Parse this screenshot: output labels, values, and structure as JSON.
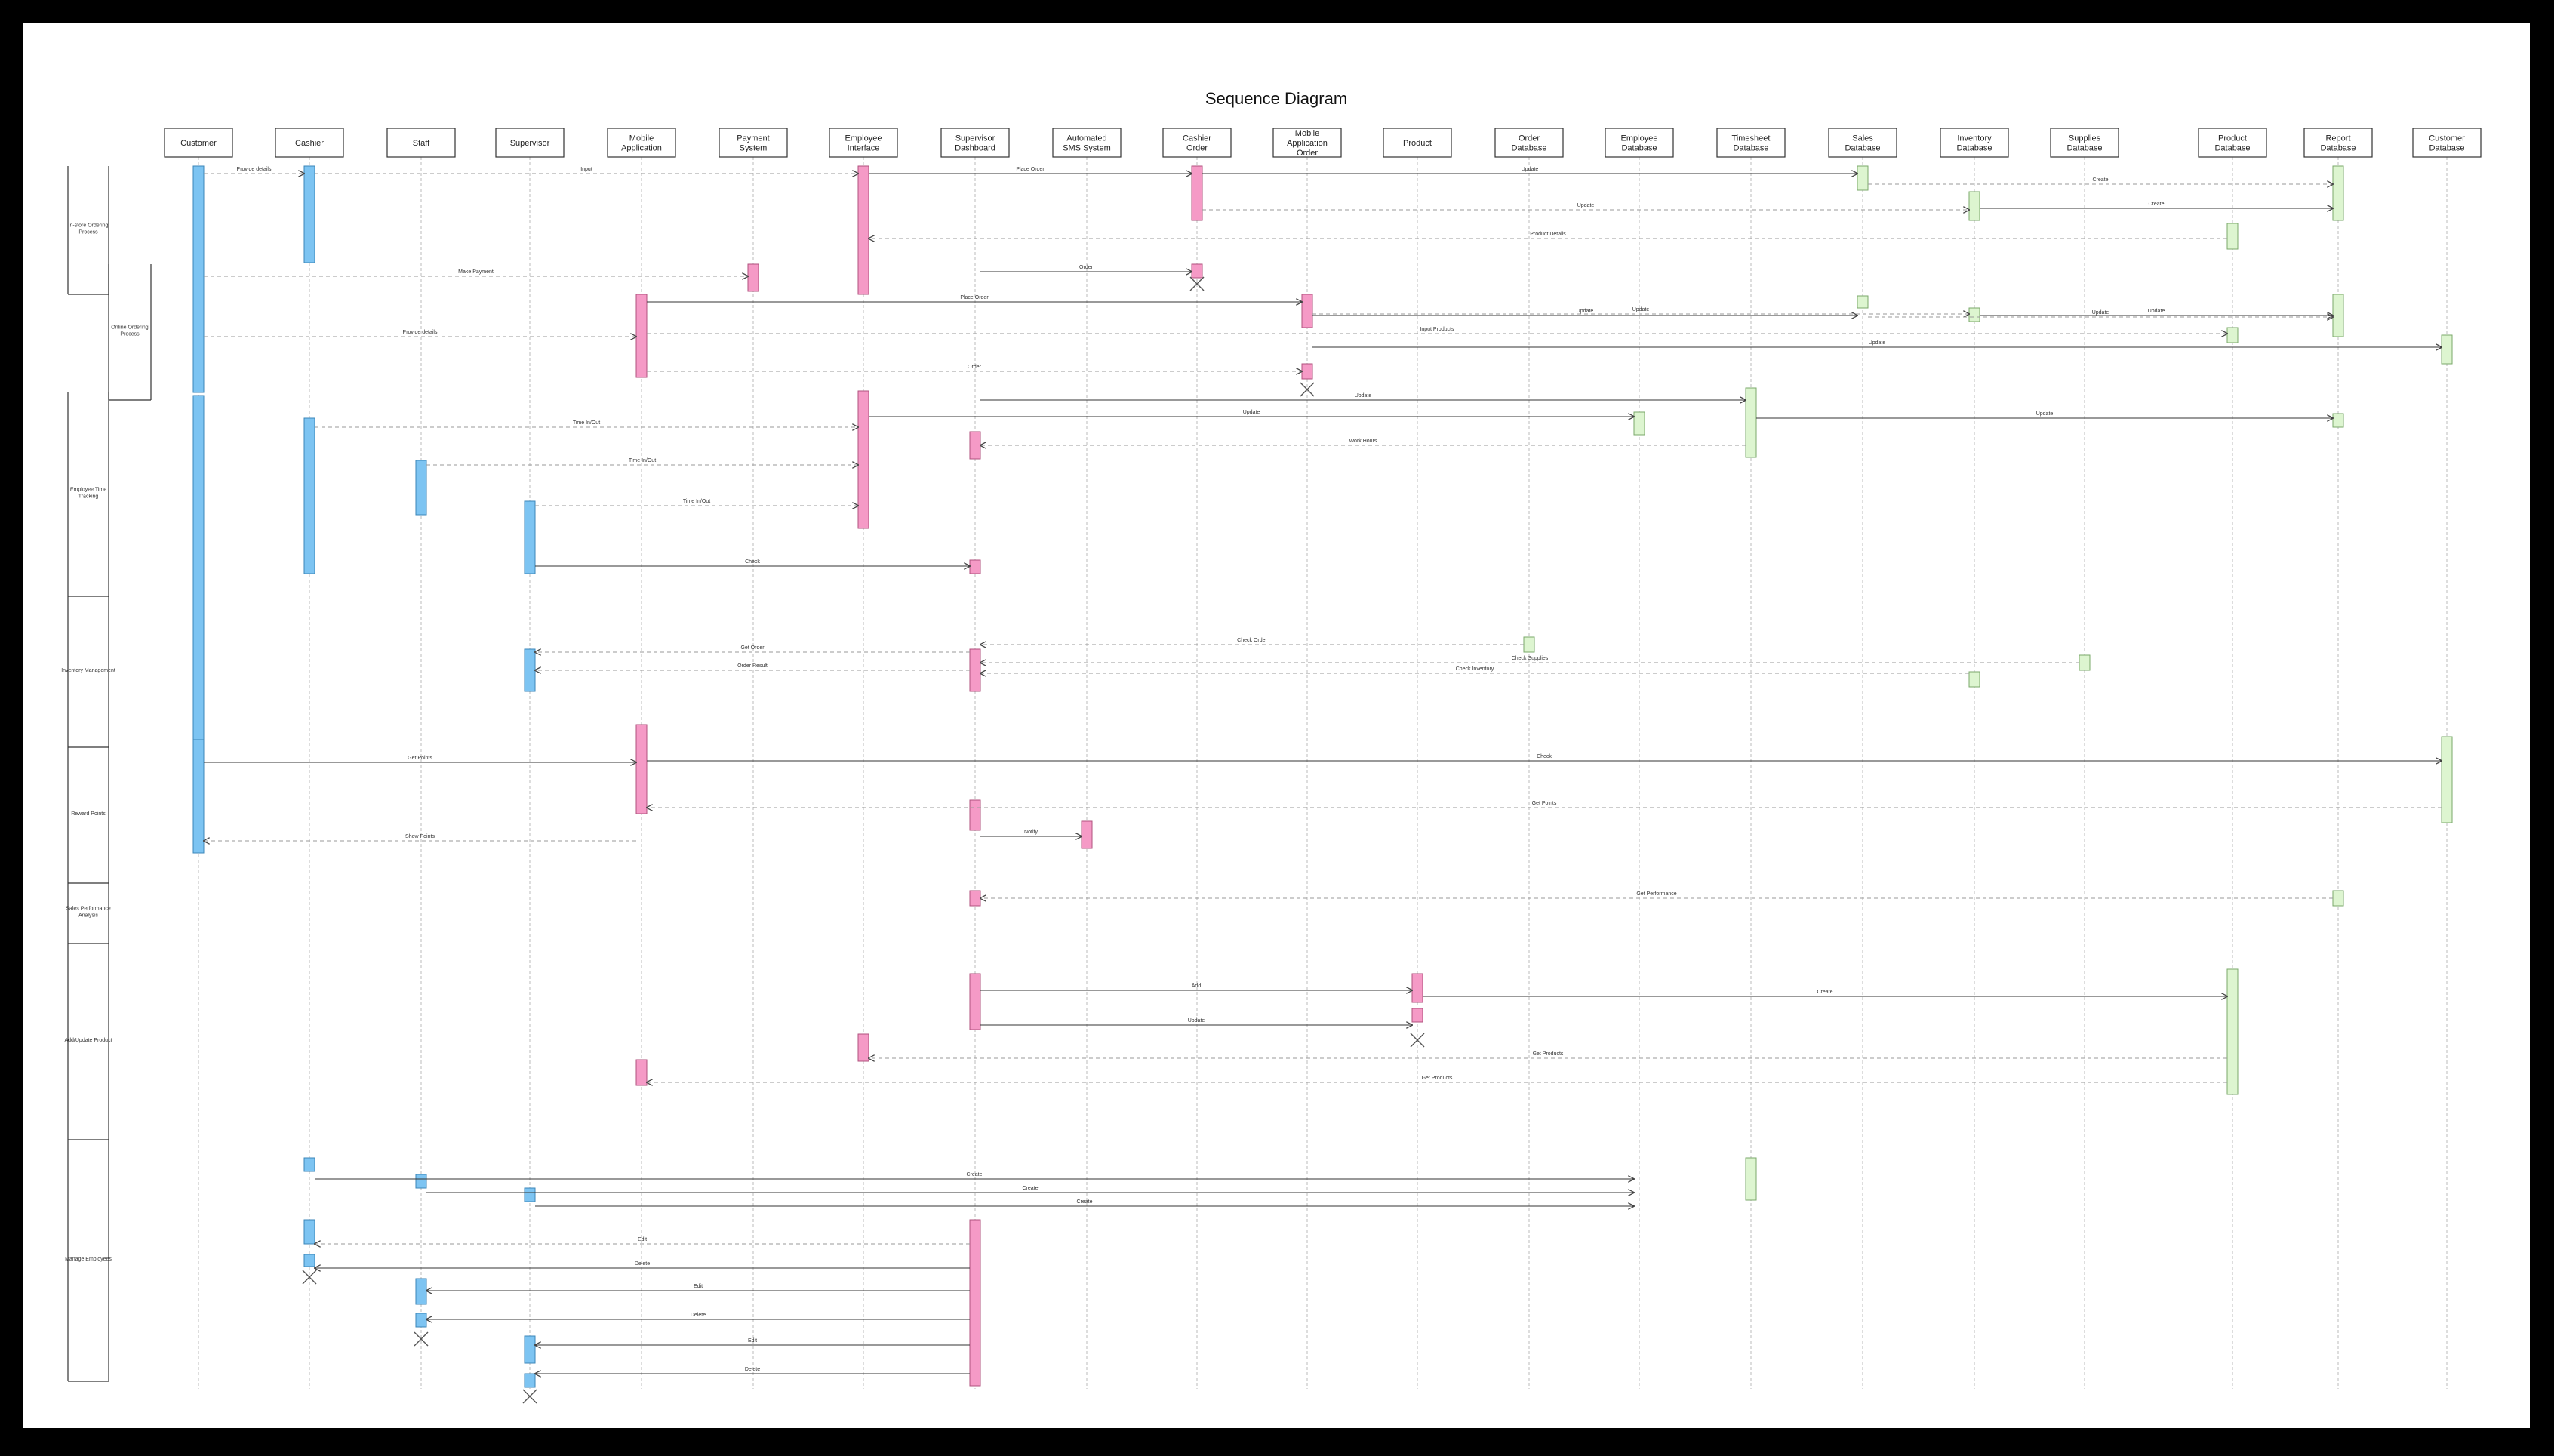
{
  "title": "Sequence Diagram",
  "colors": {
    "actor_bar": "#7dc4f2",
    "system_bar": "#f59ac6",
    "database_bar": "#ddf5d0",
    "database_border": "#7aa86a",
    "message": "#555555"
  },
  "participants": [
    {
      "id": "customer",
      "label": "Customer",
      "kind": "actor"
    },
    {
      "id": "cashier",
      "label": "Cashier",
      "kind": "actor"
    },
    {
      "id": "staff",
      "label": "Staff",
      "kind": "actor"
    },
    {
      "id": "supervisor",
      "label": "Supervisor",
      "kind": "actor"
    },
    {
      "id": "mobile_app",
      "label": "Mobile Application",
      "kind": "system"
    },
    {
      "id": "payment_system",
      "label": "Payment System",
      "kind": "system"
    },
    {
      "id": "employee_interface",
      "label": "Employee Interface",
      "kind": "system"
    },
    {
      "id": "supervisor_dashboard",
      "label": "Supervisor Dashboard",
      "kind": "system"
    },
    {
      "id": "automated_sms",
      "label": "Automated SMS System",
      "kind": "system"
    },
    {
      "id": "cashier_order",
      "label": "Cashier Order",
      "kind": "system"
    },
    {
      "id": "mobile_app_order",
      "label": "Mobile Application Order",
      "kind": "system"
    },
    {
      "id": "product",
      "label": "Product",
      "kind": "system"
    },
    {
      "id": "order_db",
      "label": "Order Database",
      "kind": "database"
    },
    {
      "id": "employee_db",
      "label": "Employee Database",
      "kind": "database"
    },
    {
      "id": "timesheet_db",
      "label": "Timesheet Database",
      "kind": "database"
    },
    {
      "id": "sales_db",
      "label": "Sales Database",
      "kind": "database"
    },
    {
      "id": "inventory_db",
      "label": "Inventory Database",
      "kind": "database"
    },
    {
      "id": "supplies_db",
      "label": "Supplies Database",
      "kind": "database"
    },
    {
      "id": "product_db",
      "label": "Product Database",
      "kind": "database"
    },
    {
      "id": "report_db",
      "label": "Report Database",
      "kind": "database"
    },
    {
      "id": "customer_db",
      "label": "Customer Database",
      "kind": "database"
    }
  ],
  "sections": [
    {
      "label": "In-store Ordering Process",
      "level": 1
    },
    {
      "label": "Online Ordering Process",
      "level": 2
    },
    {
      "label": "Employee Time Tracking",
      "level": 1
    },
    {
      "label": "Inventory Management",
      "level": 1
    },
    {
      "label": "Reward Points",
      "level": 1
    },
    {
      "label": "Sales Performance Analysis",
      "level": 1
    },
    {
      "label": "Add/Update Product",
      "level": 1
    },
    {
      "label": "Manage Employees",
      "level": 1
    }
  ],
  "messages": [
    {
      "from": "customer",
      "to": "cashier",
      "label": "Provide details",
      "style": "dashed"
    },
    {
      "from": "cashier",
      "to": "employee_interface",
      "label": "Input",
      "style": "dashed"
    },
    {
      "from": "employee_interface",
      "to": "cashier_order",
      "label": "Place Order",
      "style": "solid"
    },
    {
      "from": "cashier_order",
      "to": "sales_db",
      "label": "Update",
      "style": "solid"
    },
    {
      "from": "sales_db",
      "to": "report_db",
      "label": "Create",
      "style": "dashed"
    },
    {
      "from": "cashier_order",
      "to": "inventory_db",
      "label": "Update",
      "style": "dashed"
    },
    {
      "from": "inventory_db",
      "to": "report_db",
      "label": "Create",
      "style": "solid"
    },
    {
      "from": "product_db",
      "to": "employee_interface",
      "label": "Product Details",
      "style": "dashed"
    },
    {
      "from": "customer",
      "to": "payment_system",
      "label": "Make Payment",
      "style": "dashed"
    },
    {
      "from": "supervisor_dashboard",
      "to": "cashier_order",
      "label": "Order",
      "style": "solid"
    },
    {
      "from": "customer",
      "to": "mobile_app",
      "label": "Provide details",
      "style": "dashed"
    },
    {
      "from": "mobile_app",
      "to": "mobile_app_order",
      "label": "Place Order",
      "style": "solid"
    },
    {
      "from": "mobile_app_order",
      "to": "sales_db",
      "label": "Update",
      "style": "solid"
    },
    {
      "from": "mobile_app_order",
      "to": "inventory_db",
      "label": "Update",
      "style": "dashed"
    },
    {
      "from": "inventory_db",
      "to": "report_db",
      "label": "Update",
      "style": "solid"
    },
    {
      "from": "sales_db",
      "to": "report_db",
      "label": "Update",
      "style": "dashed"
    },
    {
      "from": "mobile_app",
      "to": "product_db",
      "label": "Input Products",
      "style": "dashed"
    },
    {
      "from": "mobile_app_order",
      "to": "customer_db",
      "label": "Update",
      "style": "solid"
    },
    {
      "from": "mobile_app",
      "to": "mobile_app_order",
      "label": "Order",
      "style": "dashed"
    },
    {
      "from": "supervisor_dashboard",
      "to": "timesheet_db",
      "label": "Update",
      "style": "solid"
    },
    {
      "from": "employee_interface",
      "to": "employee_db",
      "label": "Update",
      "style": "solid"
    },
    {
      "from": "timesheet_db",
      "to": "report_db",
      "label": "Update",
      "style": "solid"
    },
    {
      "from": "timesheet_db",
      "to": "supervisor_dashboard",
      "label": "Work Hours",
      "style": "dashed"
    },
    {
      "from": "cashier",
      "to": "employee_interface",
      "label": "Time In/Out",
      "style": "dashed"
    },
    {
      "from": "staff",
      "to": "employee_interface",
      "label": "Time In/Out",
      "style": "dashed"
    },
    {
      "from": "supervisor",
      "to": "employee_interface",
      "label": "Time In/Out",
      "style": "dashed"
    },
    {
      "from": "supervisor",
      "to": "supervisor_dashboard",
      "label": "Check",
      "style": "solid"
    },
    {
      "from": "order_db",
      "to": "supervisor_dashboard",
      "label": "Check Order",
      "style": "dashed"
    },
    {
      "from": "supervisor_dashboard",
      "to": "supervisor",
      "label": "Get Order",
      "style": "dashed"
    },
    {
      "from": "supplies_db",
      "to": "supervisor_dashboard",
      "label": "Check Supplies",
      "style": "dashed"
    },
    {
      "from": "inventory_db",
      "to": "supervisor_dashboard",
      "label": "Check Inventory",
      "style": "dashed"
    },
    {
      "from": "supervisor_dashboard",
      "to": "supervisor",
      "label": "Order Result",
      "style": "dashed"
    },
    {
      "from": "customer",
      "to": "mobile_app",
      "label": "Get Points",
      "style": "solid"
    },
    {
      "from": "mobile_app",
      "to": "customer_db",
      "label": "Check",
      "style": "solid"
    },
    {
      "from": "customer_db",
      "to": "mobile_app",
      "label": "Get Points",
      "style": "dashed"
    },
    {
      "from": "supervisor_dashboard",
      "to": "automated_sms",
      "label": "Notify",
      "style": "solid"
    },
    {
      "from": "mobile_app",
      "to": "customer",
      "label": "Show Points",
      "style": "dashed"
    },
    {
      "from": "report_db",
      "to": "supervisor_dashboard",
      "label": "Get Performance",
      "style": "dashed"
    },
    {
      "from": "supervisor_dashboard",
      "to": "product",
      "label": "Add",
      "style": "solid"
    },
    {
      "from": "product",
      "to": "product_db",
      "label": "Create",
      "style": "solid"
    },
    {
      "from": "supervisor_dashboard",
      "to": "product",
      "label": "Update",
      "style": "solid"
    },
    {
      "from": "product_db",
      "to": "employee_interface",
      "label": "Get Products",
      "style": "dashed"
    },
    {
      "from": "product_db",
      "to": "mobile_app",
      "label": "Get Products",
      "style": "dashed"
    },
    {
      "from": "cashier",
      "to": "employee_db",
      "label": "Create",
      "style": "solid"
    },
    {
      "from": "staff",
      "to": "employee_db",
      "label": "Create",
      "style": "solid"
    },
    {
      "from": "supervisor",
      "to": "employee_db",
      "label": "Create",
      "style": "solid"
    },
    {
      "from": "supervisor_dashboard",
      "to": "cashier",
      "label": "Edit",
      "style": "dashed"
    },
    {
      "from": "supervisor_dashboard",
      "to": "cashier",
      "label": "Delete",
      "style": "solid"
    },
    {
      "from": "supervisor_dashboard",
      "to": "staff",
      "label": "Edit",
      "style": "solid"
    },
    {
      "from": "supervisor_dashboard",
      "to": "staff",
      "label": "Delete",
      "style": "solid"
    },
    {
      "from": "supervisor_dashboard",
      "to": "supervisor",
      "label": "Edit",
      "style": "solid"
    },
    {
      "from": "supervisor_dashboard",
      "to": "supervisor",
      "label": "Delete",
      "style": "solid"
    }
  ]
}
